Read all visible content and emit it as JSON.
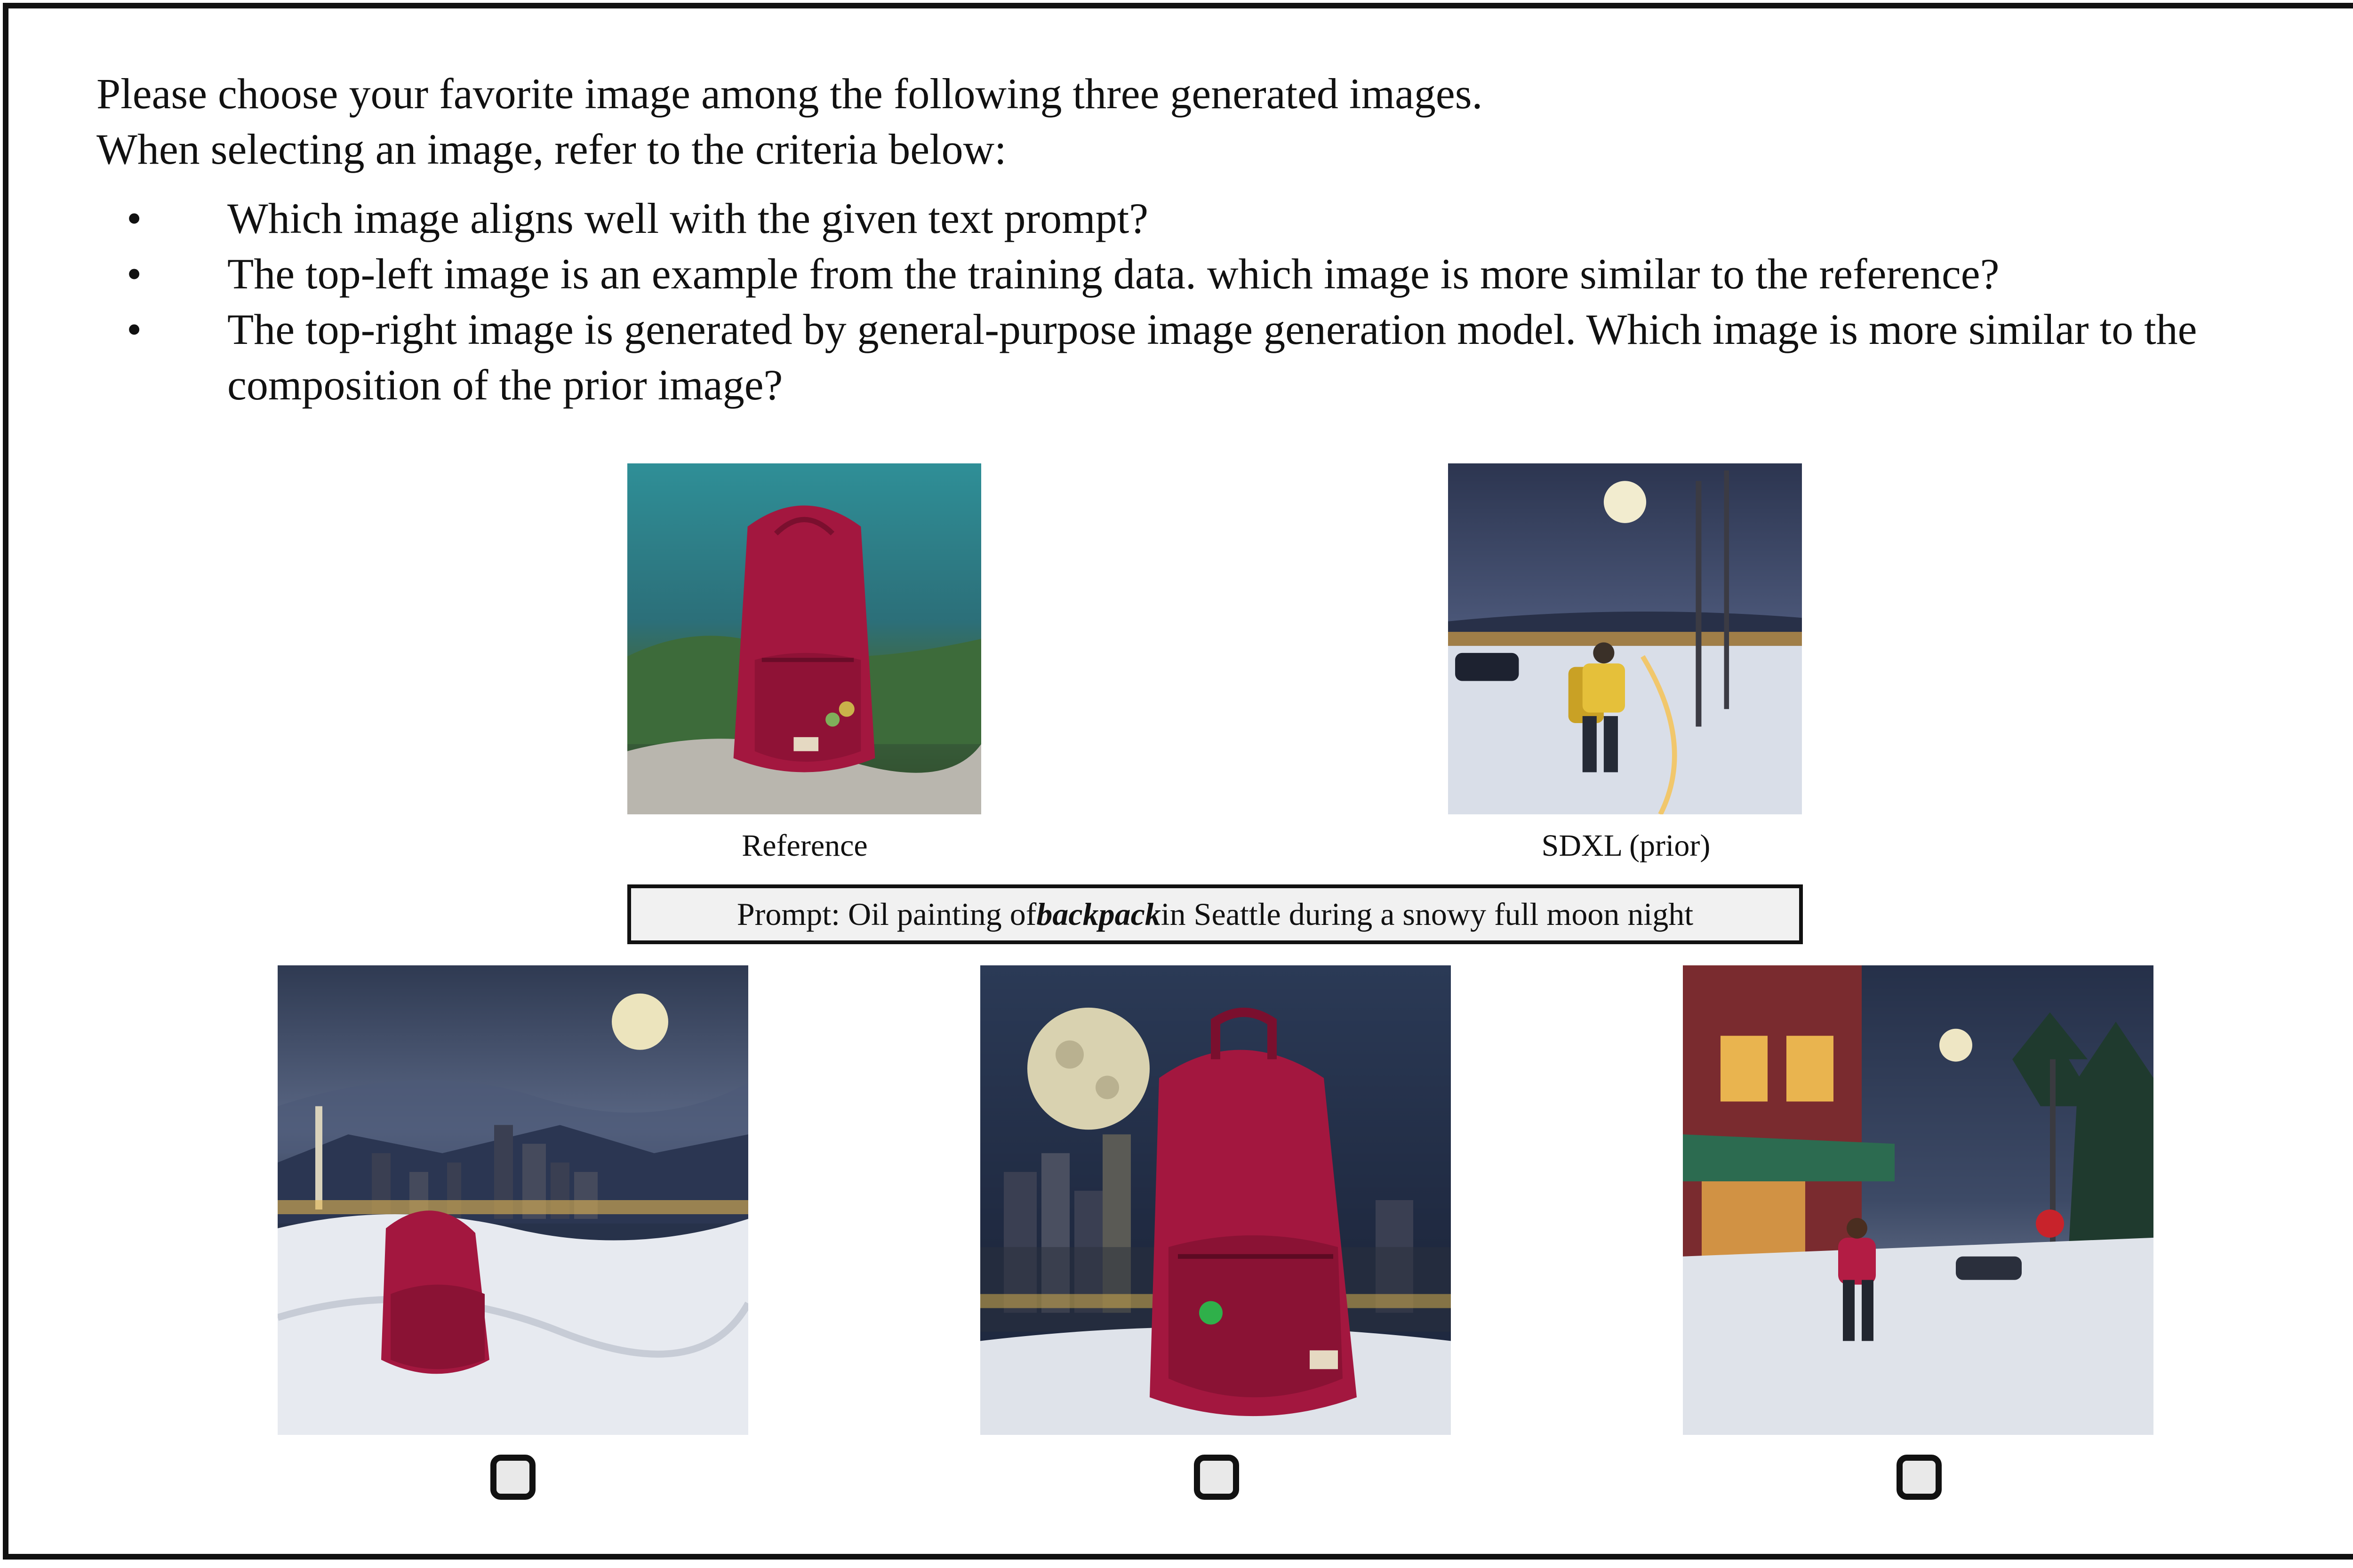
{
  "instructions": {
    "line1": "Please choose your favorite image among the following three generated images.",
    "line2": "When selecting an image, refer to the criteria below:",
    "criteria": [
      "Which image aligns well with the given text prompt?",
      "The top-left image is an example from the training data. which image is more similar to the reference?",
      "The top-right image is generated by general-purpose image generation model. Which image is more similar to the composition of the prior image?"
    ],
    "bullet": "•"
  },
  "reference": {
    "caption": "Reference"
  },
  "prior": {
    "caption": "SDXL (prior)"
  },
  "prompt": {
    "prefix": "Prompt: Oil painting of ",
    "subject": "backpack",
    "suffix": " in Seattle during a snowy full moon night"
  },
  "options": [
    {
      "id": "option-1",
      "checked": false
    },
    {
      "id": "option-2",
      "checked": false
    },
    {
      "id": "option-3",
      "checked": false
    }
  ],
  "colors": {
    "backpack": "#a3173f",
    "night_sky": "#2e3a55",
    "snow": "#e6e9ee",
    "teal_sky": "#2d7d86"
  }
}
